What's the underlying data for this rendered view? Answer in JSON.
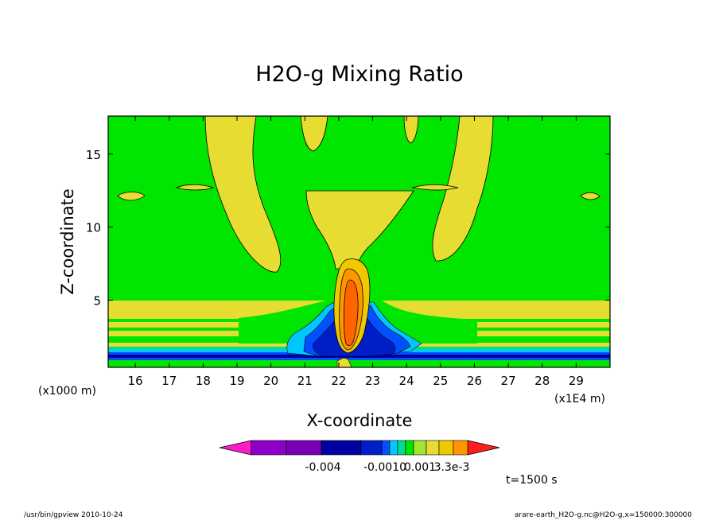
{
  "chart_data": {
    "type": "heatmap",
    "title": "H2O-g Mixing Ratio",
    "xlabel": "X-coordinate",
    "ylabel": "Z-coordinate",
    "x_unit": "(x1E4 m)",
    "y_unit": "(x1000 m)",
    "xlim": [
      15.2,
      30.0
    ],
    "ylim": [
      0.4,
      17.6
    ],
    "xticks": [
      16,
      17,
      18,
      19,
      20,
      21,
      22,
      23,
      24,
      25,
      26,
      27,
      28,
      29
    ],
    "yticks": [
      5,
      10,
      15
    ],
    "colorbar_labels": [
      "-0.004",
      "-0.0010",
      "0.001",
      "3.3e-3"
    ],
    "colorbar_colors": [
      "#ff1cc8",
      "#8c00c8",
      "#7800b4",
      "#0000a0",
      "#001ec8",
      "#0050ff",
      "#00c8ff",
      "#00dc96",
      "#00e600",
      "#a0e632",
      "#e6dc32",
      "#f0c800",
      "#ff9600",
      "#ff6400",
      "#ff1e1e"
    ],
    "background_color": "#00e600",
    "time_label": "t=1500 s",
    "grid": false
  },
  "footer": {
    "left": "/usr/bin/gpview   2010-10-24",
    "right": "arare-earth_H2O-g.nc@H2O-g,x=150000:300000"
  }
}
